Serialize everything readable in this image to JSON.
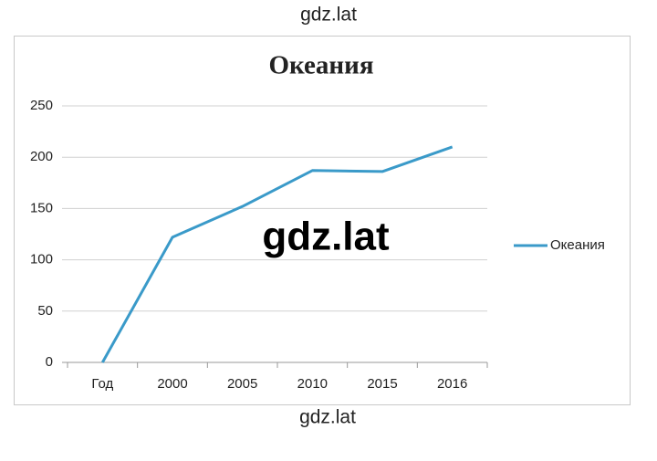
{
  "chart_data": {
    "type": "line",
    "title": "Океания",
    "categories": [
      "Год",
      "2000",
      "2005",
      "2010",
      "2015",
      "2016"
    ],
    "series": [
      {
        "name": "Океания",
        "color": "#3a9ac9",
        "values": [
          0,
          122,
          152,
          187,
          186,
          210
        ]
      }
    ],
    "ylim": [
      0,
      250
    ],
    "yticks": [
      0,
      50,
      100,
      150,
      200,
      250
    ],
    "grid": true,
    "legend": "right",
    "annotations": [
      "gdz.lat",
      "gdz.lat",
      "gdz.lat"
    ]
  }
}
